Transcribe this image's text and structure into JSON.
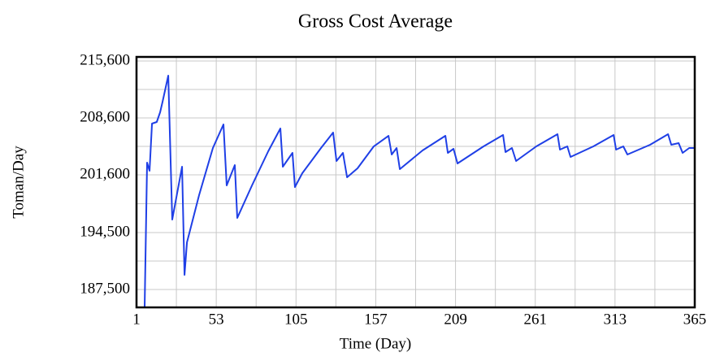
{
  "chart_data": {
    "type": "line",
    "title": "Gross Cost Average",
    "x_label": "Time (Day)",
    "y_label": "Toman/Day",
    "x": [
      6.3,
      7.9,
      9.5,
      11.1,
      14.2,
      16.4,
      18,
      21.7,
      24.3,
      30.7,
      32.3,
      33.9,
      41.8,
      50.8,
      57.7,
      59.8,
      65.1,
      66.7,
      76.3,
      86.9,
      94.8,
      96.4,
      102.7,
      104.3,
      109.1,
      121.3,
      129.2,
      131.4,
      135.6,
      138.3,
      145.1,
      155.7,
      165.3,
      167.4,
      170.6,
      172.7,
      187.5,
      202.4,
      204,
      207.7,
      210.3,
      227.3,
      240,
      241.6,
      245.8,
      248.5,
      261.7,
      275.5,
      277.1,
      281.9,
      284,
      298.9,
      312.1,
      313.7,
      318.4,
      321.1,
      335.9,
      347.6,
      349.7,
      354.5,
      357.1,
      361.4,
      365
    ],
    "series": [
      {
        "name": "Gross Cost Average",
        "color": "#1f3fe6",
        "values": [
          185300,
          203100,
          202100,
          207900,
          208100,
          209300,
          210600,
          213800,
          196100,
          202600,
          189300,
          193300,
          199100,
          204900,
          207800,
          200300,
          202800,
          196300,
          200300,
          204500,
          207300,
          202600,
          204300,
          200100,
          201800,
          204900,
          206800,
          203300,
          204300,
          201300,
          202400,
          205100,
          206400,
          204100,
          204900,
          202300,
          204600,
          206400,
          204300,
          204800,
          203000,
          205100,
          206500,
          204400,
          204900,
          203300,
          205100,
          206600,
          204700,
          205100,
          203800,
          205100,
          206500,
          204700,
          205100,
          204100,
          205300,
          206600,
          205300,
          205500,
          204300,
          204900,
          204900
        ]
      }
    ],
    "xlim": [
      1,
      365
    ],
    "ylim": [
      185300,
      216100
    ],
    "xticks": [
      1,
      53,
      105,
      157,
      209,
      261,
      313,
      365
    ],
    "yticks": [
      {
        "value": 187500,
        "label": "187,500"
      },
      {
        "value": 194500,
        "label": "194,500"
      },
      {
        "value": 201600,
        "label": "201,600"
      },
      {
        "value": 208600,
        "label": "208,600"
      },
      {
        "value": 215600,
        "label": "215,600"
      }
    ],
    "grid_x": [
      27,
      79,
      131,
      183,
      235,
      287,
      339
    ],
    "grid_y": [
      191000,
      198050,
      205100,
      212100
    ],
    "grid": true
  }
}
